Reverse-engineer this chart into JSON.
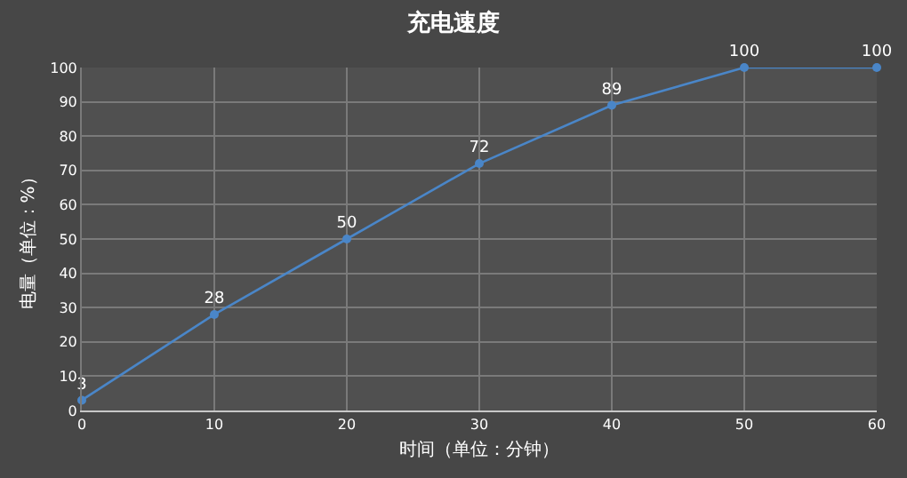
{
  "chart_data": {
    "type": "line",
    "title": "充电速度",
    "xlabel": "时间（单位：分钟）",
    "ylabel": "电量（单位：%）",
    "x": [
      0,
      10,
      20,
      30,
      40,
      50,
      60
    ],
    "series": [
      {
        "color": "#4a86c8",
        "values": [
          3,
          28,
          50,
          72,
          89,
          100,
          100
        ]
      }
    ],
    "xlim": [
      0,
      60
    ],
    "xticks": [
      0,
      10,
      20,
      30,
      40,
      50,
      60
    ],
    "ylim": [
      0,
      100
    ],
    "yticks": [
      0,
      10,
      20,
      30,
      40,
      50,
      60,
      70,
      80,
      90,
      100
    ],
    "grid": true,
    "legend": false,
    "marker": "circle",
    "line_style": "solid",
    "data_labels": true
  }
}
